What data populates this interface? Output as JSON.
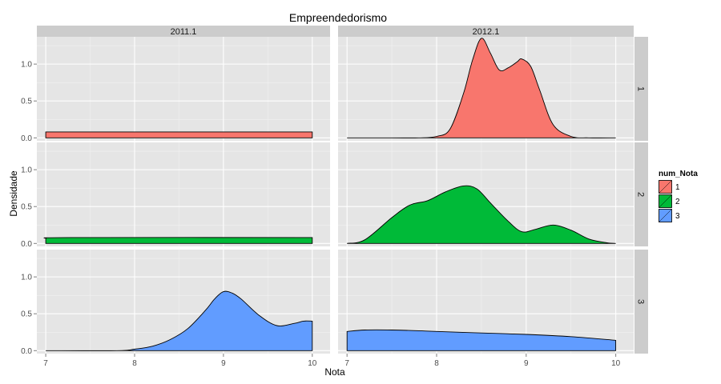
{
  "chart_data": {
    "type": "area",
    "title": "Empreendedorismo",
    "xlabel": "Nota",
    "ylabel": "Densidade",
    "x_ticks": [
      7,
      8,
      9,
      10
    ],
    "x_tick_labels": [
      "7",
      "8",
      "9",
      "10"
    ],
    "y_ticks": [
      0,
      0.5,
      1.0
    ],
    "y_tick_labels": [
      "0.0",
      "0.5",
      "1.0"
    ],
    "xlim": [
      6.9,
      10.2
    ],
    "ylim": [
      -0.04,
      1.37
    ],
    "column_strips": [
      "2011.1",
      "2012.1"
    ],
    "row_strips": [
      "1",
      "2",
      "3"
    ],
    "legend": {
      "title": "num_Nota",
      "position": "right",
      "entries": [
        {
          "label": "1",
          "color": "#F8766D"
        },
        {
          "label": "2",
          "color": "#00BA38"
        },
        {
          "label": "3",
          "color": "#619CFF"
        }
      ]
    },
    "grid": true,
    "panels": [
      {
        "column": "2011.1",
        "row": "1",
        "color": "#F8766D",
        "x": [
          7.0,
          10.0
        ],
        "y": [
          0.08,
          0.08
        ]
      },
      {
        "column": "2012.1",
        "row": "1",
        "color": "#F8766D",
        "x": [
          7.0,
          7.5,
          7.8,
          8.0,
          8.15,
          8.3,
          8.4,
          8.5,
          8.6,
          8.7,
          8.8,
          8.9,
          8.95,
          9.05,
          9.15,
          9.3,
          9.5,
          9.7,
          10.0
        ],
        "y": [
          0.0,
          0.0,
          0.0,
          0.02,
          0.12,
          0.6,
          1.05,
          1.35,
          1.15,
          0.92,
          0.95,
          1.03,
          1.07,
          0.97,
          0.65,
          0.18,
          0.02,
          0.0,
          0.0
        ]
      },
      {
        "column": "2011.1",
        "row": "2",
        "color": "#00BA38",
        "x": [
          7.0,
          7.3,
          10.0
        ],
        "y": [
          0.07,
          0.08,
          0.08
        ]
      },
      {
        "column": "2012.1",
        "row": "2",
        "color": "#00BA38",
        "x": [
          7.0,
          7.2,
          7.5,
          7.7,
          7.9,
          8.1,
          8.3,
          8.45,
          8.6,
          8.8,
          8.95,
          9.1,
          9.3,
          9.5,
          9.7,
          9.9,
          10.0
        ],
        "y": [
          0.0,
          0.05,
          0.35,
          0.52,
          0.58,
          0.7,
          0.78,
          0.74,
          0.55,
          0.3,
          0.16,
          0.19,
          0.25,
          0.18,
          0.06,
          0.01,
          0.0
        ]
      },
      {
        "column": "2011.1",
        "row": "3",
        "color": "#619CFF",
        "x": [
          7.0,
          7.8,
          8.0,
          8.2,
          8.4,
          8.6,
          8.8,
          8.9,
          9.0,
          9.1,
          9.2,
          9.4,
          9.6,
          9.8,
          9.9,
          10.0
        ],
        "y": [
          0.0,
          0.0,
          0.02,
          0.06,
          0.15,
          0.3,
          0.55,
          0.7,
          0.8,
          0.78,
          0.7,
          0.48,
          0.34,
          0.37,
          0.4,
          0.4
        ]
      },
      {
        "column": "2012.1",
        "row": "3",
        "color": "#619CFF",
        "x": [
          7.0,
          7.2,
          7.5,
          7.8,
          8.0,
          8.5,
          9.0,
          9.5,
          10.0
        ],
        "y": [
          0.26,
          0.28,
          0.28,
          0.27,
          0.26,
          0.24,
          0.22,
          0.19,
          0.14
        ]
      }
    ]
  }
}
